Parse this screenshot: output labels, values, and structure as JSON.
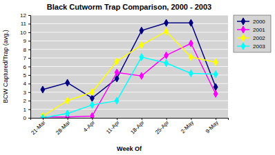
{
  "chart_data": {
    "type": "line",
    "title": "Black Cutworm Trap Comparison, 2000 - 2003",
    "xlabel": "Week Of",
    "ylabel": "BCW Captured/Trap (avg.)",
    "categories": [
      "21-Mar",
      "28-Mar",
      "4-Apr",
      "11-Apr",
      "18-Apr",
      "25-Apr",
      "2-May",
      "9-May"
    ],
    "series": [
      {
        "name": "2000",
        "color": "#000080",
        "marker": "diamond",
        "values": [
          3.3,
          4.1,
          2.3,
          4.6,
          10.2,
          11.1,
          11.1,
          3.6
        ]
      },
      {
        "name": "2001",
        "color": "#FF00FF",
        "marker": "diamond",
        "values": [
          0.1,
          0.1,
          0.2,
          5.3,
          4.9,
          7.3,
          8.7,
          2.8
        ]
      },
      {
        "name": "2002",
        "color": "#FFFF00",
        "marker": "diamond",
        "values": [
          0.2,
          2.0,
          3.0,
          6.6,
          8.5,
          10.1,
          7.1,
          6.5
        ]
      },
      {
        "name": "2003",
        "color": "#00FFFF",
        "marker": "diamond",
        "values": [
          0.0,
          0.5,
          1.5,
          2.0,
          7.1,
          6.4,
          5.2,
          5.1
        ]
      }
    ],
    "ylim": [
      0,
      12
    ],
    "yticks": [
      0,
      1,
      2,
      3,
      4,
      5,
      6,
      7,
      8,
      9,
      10,
      11,
      12
    ],
    "grid": true,
    "legend": "right"
  }
}
